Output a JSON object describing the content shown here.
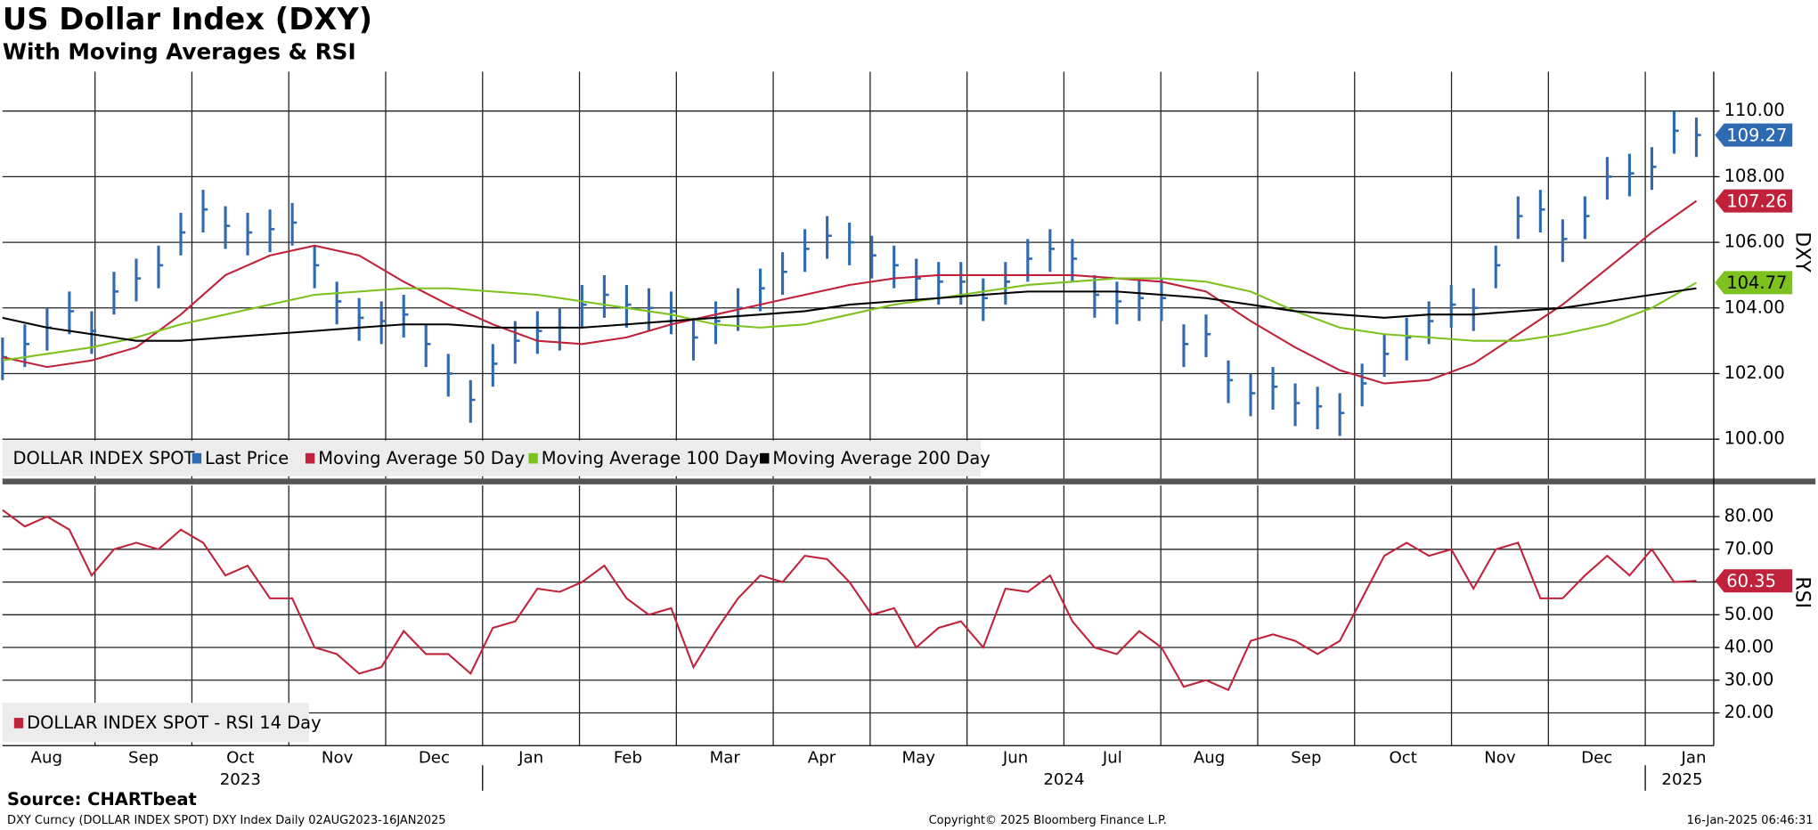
{
  "chart_data": [
    {
      "type": "ohlc",
      "title": "US Dollar Index (DXY)",
      "subtitle": "With Moving Averages & RSI",
      "axis_label": "DXY",
      "legend_title": "DOLLAR INDEX SPOT",
      "ylim": [
        98.8,
        111.2
      ],
      "yticks": [
        {
          "value": 100,
          "label": "100.00"
        },
        {
          "value": 102,
          "label": "102.00"
        },
        {
          "value": 104,
          "label": "104.00"
        },
        {
          "value": 106,
          "label": "106.00"
        },
        {
          "value": 108,
          "label": "108.00"
        },
        {
          "value": 110,
          "label": "110.00"
        }
      ],
      "grid": true,
      "series": [
        {
          "name": "Last Price",
          "color": "#2e6ab1",
          "high": [
            103.1,
            103.5,
            104.0,
            104.5,
            103.9,
            105.1,
            105.5,
            105.9,
            106.9,
            107.6,
            107.1,
            106.9,
            107.0,
            107.2,
            105.9,
            104.8,
            104.3,
            104.2,
            104.4,
            103.5,
            102.6,
            101.8,
            102.9,
            103.6,
            103.9,
            104.0,
            104.7,
            105.0,
            104.7,
            104.6,
            104.5,
            103.7,
            104.2,
            104.6,
            105.2,
            105.7,
            106.4,
            106.8,
            106.6,
            106.2,
            105.9,
            105.5,
            105.4,
            105.4,
            104.9,
            105.4,
            106.1,
            106.4,
            106.1,
            105.0,
            104.8,
            104.9,
            104.9,
            103.5,
            103.8,
            102.4,
            102.0,
            102.2,
            101.7,
            101.6,
            101.4,
            102.3,
            103.2,
            103.7,
            104.2,
            104.7,
            104.6,
            105.9,
            107.4,
            107.6,
            106.7,
            107.4,
            108.6,
            108.7,
            108.9,
            110.0,
            109.8
          ],
          "low": [
            101.8,
            102.2,
            102.7,
            103.2,
            102.6,
            103.8,
            104.2,
            104.6,
            105.6,
            106.3,
            105.8,
            105.6,
            105.7,
            105.9,
            104.6,
            103.5,
            103.0,
            102.9,
            103.1,
            102.2,
            101.3,
            100.5,
            101.6,
            102.3,
            102.6,
            102.7,
            103.4,
            103.7,
            103.4,
            103.3,
            103.2,
            102.4,
            102.9,
            103.3,
            103.9,
            104.4,
            105.1,
            105.5,
            105.3,
            104.9,
            104.6,
            104.2,
            104.1,
            104.1,
            103.6,
            104.1,
            104.8,
            105.1,
            104.8,
            103.7,
            103.5,
            103.6,
            103.6,
            102.2,
            102.5,
            101.1,
            100.7,
            100.9,
            100.4,
            100.3,
            100.1,
            101.0,
            101.9,
            102.4,
            102.9,
            103.4,
            103.3,
            104.6,
            106.1,
            106.3,
            105.4,
            106.1,
            107.3,
            107.4,
            107.6,
            108.7,
            108.6
          ],
          "values": [
            102.5,
            102.9,
            103.4,
            103.9,
            103.3,
            104.5,
            104.9,
            105.3,
            106.3,
            107.0,
            106.5,
            106.3,
            106.4,
            106.6,
            105.3,
            104.2,
            103.7,
            103.6,
            103.8,
            102.9,
            102.0,
            101.2,
            102.3,
            103.0,
            103.3,
            103.4,
            104.1,
            104.4,
            104.1,
            104.0,
            103.9,
            103.1,
            103.6,
            104.0,
            104.6,
            105.1,
            105.8,
            106.2,
            106.0,
            105.6,
            105.3,
            104.9,
            104.8,
            104.8,
            104.3,
            104.8,
            105.5,
            105.8,
            105.5,
            104.4,
            104.2,
            104.3,
            104.3,
            102.9,
            103.2,
            101.8,
            101.4,
            101.6,
            101.1,
            101.0,
            100.8,
            101.7,
            102.6,
            103.1,
            103.6,
            104.1,
            104.0,
            105.3,
            106.8,
            107.0,
            106.1,
            106.8,
            108.0,
            108.1,
            108.3,
            109.4,
            109.27
          ]
        },
        {
          "name": "Moving Average 50 Day",
          "color": "#c0223b",
          "values": [
            102.5,
            102.2,
            102.4,
            102.8,
            103.8,
            105.0,
            105.6,
            105.9,
            105.6,
            104.8,
            104.1,
            103.5,
            103.0,
            102.9,
            103.1,
            103.5,
            103.8,
            104.1,
            104.4,
            104.7,
            104.9,
            105.0,
            105.0,
            105.0,
            105.0,
            104.9,
            104.8,
            104.5,
            103.6,
            102.8,
            102.1,
            101.7,
            101.8,
            102.3,
            103.2,
            104.1,
            105.2,
            106.3,
            107.26
          ]
        },
        {
          "name": "Moving Average 100 Day",
          "color": "#7dc21e",
          "values": [
            102.4,
            102.6,
            102.8,
            103.1,
            103.5,
            103.8,
            104.1,
            104.4,
            104.5,
            104.6,
            104.6,
            104.5,
            104.4,
            104.2,
            104.0,
            103.8,
            103.5,
            103.4,
            103.5,
            103.8,
            104.1,
            104.3,
            104.5,
            104.7,
            104.8,
            104.9,
            104.9,
            104.8,
            104.5,
            103.9,
            103.4,
            103.2,
            103.1,
            103.0,
            103.0,
            103.2,
            103.5,
            104.0,
            104.77
          ]
        },
        {
          "name": "Moving Average 200 Day",
          "color": "#000000",
          "values": [
            103.7,
            103.4,
            103.2,
            103.0,
            103.0,
            103.1,
            103.2,
            103.3,
            103.4,
            103.5,
            103.5,
            103.4,
            103.4,
            103.4,
            103.5,
            103.6,
            103.7,
            103.8,
            103.9,
            104.1,
            104.2,
            104.3,
            104.4,
            104.5,
            104.5,
            104.5,
            104.4,
            104.3,
            104.1,
            103.9,
            103.8,
            103.7,
            103.8,
            103.8,
            103.9,
            104.0,
            104.2,
            104.4,
            104.6
          ]
        }
      ]
    },
    {
      "type": "line",
      "axis_label": "RSI",
      "ylim": [
        10,
        89.5
      ],
      "yticks": [
        {
          "value": 20,
          "label": "20.00"
        },
        {
          "value": 30,
          "label": "30.00"
        },
        {
          "value": 40,
          "label": "40.00"
        },
        {
          "value": 50,
          "label": "50.00"
        },
        {
          "value": 60,
          "label": "60.00"
        },
        {
          "value": 70,
          "label": "70.00"
        },
        {
          "value": 80,
          "label": "80.00"
        }
      ],
      "grid": true,
      "series": [
        {
          "name": "DOLLAR INDEX SPOT - RSI 14 Day",
          "color": "#c0223b",
          "values": [
            82,
            77,
            80,
            76,
            62,
            70,
            72,
            70,
            76,
            72,
            62,
            65,
            55,
            55,
            40,
            38,
            32,
            34,
            45,
            38,
            38,
            32,
            46,
            48,
            58,
            57,
            60,
            65,
            55,
            50,
            52,
            34,
            45,
            55,
            62,
            60,
            68,
            67,
            60,
            50,
            52,
            40,
            46,
            48,
            40,
            58,
            57,
            62,
            48,
            40,
            38,
            45,
            40,
            28,
            30,
            27,
            42,
            44,
            42,
            38,
            42,
            55,
            68,
            72,
            68,
            70,
            58,
            70,
            72,
            55,
            55,
            62,
            68,
            62,
            70,
            60,
            60.35
          ]
        }
      ]
    }
  ],
  "x_axis": {
    "months": [
      "Aug",
      "Sep",
      "Oct",
      "Nov",
      "Dec",
      "Jan",
      "Feb",
      "Mar",
      "Apr",
      "May",
      "Jun",
      "Jul",
      "Aug",
      "Sep",
      "Oct",
      "Nov",
      "Dec",
      "Jan"
    ],
    "years": [
      "2023",
      "2024",
      "2025"
    ]
  },
  "footer": {
    "source": "Source: CHARTbeat",
    "left": "DXY Curncy (DOLLAR INDEX SPOT) DXY Index  Daily 02AUG2023-16JAN2025",
    "center": "Copyright© 2025 Bloomberg Finance L.P.",
    "right": "16-Jan-2025 06:46:31"
  }
}
